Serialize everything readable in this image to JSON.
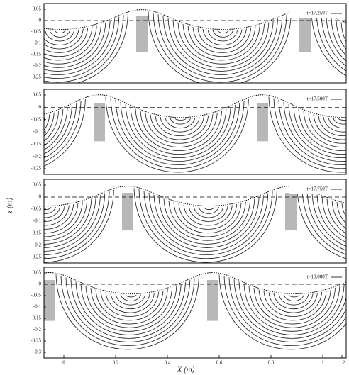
{
  "panels": [
    {
      "time_label": "t=17.250T",
      "yticks": [
        "0.05",
        "0",
        "-0.05",
        "-0.1",
        "-0.15",
        "-0.2",
        "-0.25"
      ]
    },
    {
      "time_label": "t=17.500T",
      "yticks": [
        "0.05",
        "0",
        "-0.05",
        "-0.1",
        "-0.15",
        "-0.2",
        "-0.25"
      ]
    },
    {
      "time_label": "t=17.750T",
      "yticks": [
        "0.05",
        "0",
        "-0.05",
        "-0.1",
        "-0.15",
        "-0.2",
        "-0.25"
      ]
    },
    {
      "time_label": "t=18.000T",
      "yticks": [
        "0.05",
        "0",
        "-0.05",
        "-0.1",
        "-0.15",
        "-0.2",
        "-0.25",
        "-0.3"
      ]
    }
  ],
  "xticks": [
    "0",
    "0.2",
    "0.4",
    "0.6",
    "0.8",
    "1",
    "1.2"
  ],
  "ylabel": "z (m)",
  "xlabel": "X (m)"
}
